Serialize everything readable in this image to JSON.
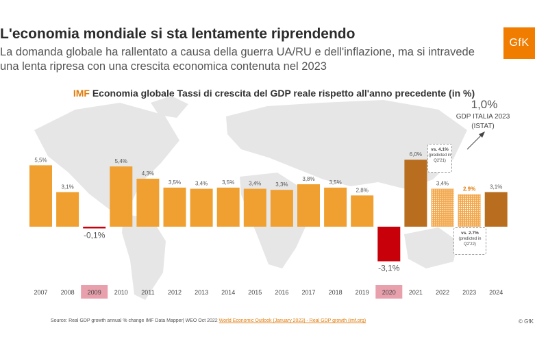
{
  "header": {
    "title": "L'economia mondiale si sta lentamente riprendendo",
    "subtitle": "La domanda globale ha rallentato a causa della guerra UA/RU e dell'inflazione, ma si intravede una lenta ripresa con una crescita economica contenuta nel 2023",
    "logo_text": "GfK"
  },
  "chart_data": {
    "type": "bar",
    "title_prefix": "IMF",
    "title": "Economia globale Tassi di crescita del GDP reale rispetto all'anno precedente (in %)",
    "categories": [
      "2007",
      "2008",
      "2009",
      "2010",
      "2011",
      "2012",
      "2013",
      "2014",
      "2015",
      "2016",
      "2017",
      "2018",
      "2019",
      "2020",
      "2021",
      "2022",
      "2023",
      "2024"
    ],
    "values": [
      5.5,
      3.1,
      -0.1,
      5.4,
      4.3,
      3.5,
      3.4,
      3.5,
      3.4,
      3.3,
      3.8,
      3.5,
      2.8,
      -3.1,
      6.0,
      3.4,
      2.9,
      3.1
    ],
    "value_labels": [
      "5,5%",
      "3,1%",
      "-0,1%",
      "5,4%",
      "4,3%",
      "3,5%",
      "3,4%",
      "3,5%",
      "3,4%",
      "3,3%",
      "3,8%",
      "3,5%",
      "2,8%",
      "-3,1%",
      "6,0%",
      "3,4%",
      "2.9%",
      "3,1%"
    ],
    "highlighted_years": [
      "2009",
      "2020"
    ],
    "ylim": [
      -3.5,
      6.5
    ],
    "annotations": [
      {
        "vs": "vs. 4.1%",
        "note": "(predicted in Q2'21)"
      },
      {
        "vs": "vs. 2.7%",
        "note": "(predicted in Q2'22)"
      }
    ],
    "italia": {
      "value": "1,0%",
      "label": "GDP ITALIA 2023",
      "source": "(ISTAT)"
    },
    "colors": {
      "orange": "#f0a030",
      "brown": "#b86e1e",
      "orange_dotted": "#f3a84d",
      "red": "#c8000a",
      "highlight_tick_bg": "#e7a0ac",
      "world_map": "#e6e6e6"
    }
  },
  "footer": {
    "source_text": "Source: Real GDP growth annual % change IMF Data Mapper| WEO Oct 2022 ",
    "source_link": "World Economic Outlook (January 2023) - Real GDP growth (imf.org)",
    "copyright": "© GfK"
  }
}
